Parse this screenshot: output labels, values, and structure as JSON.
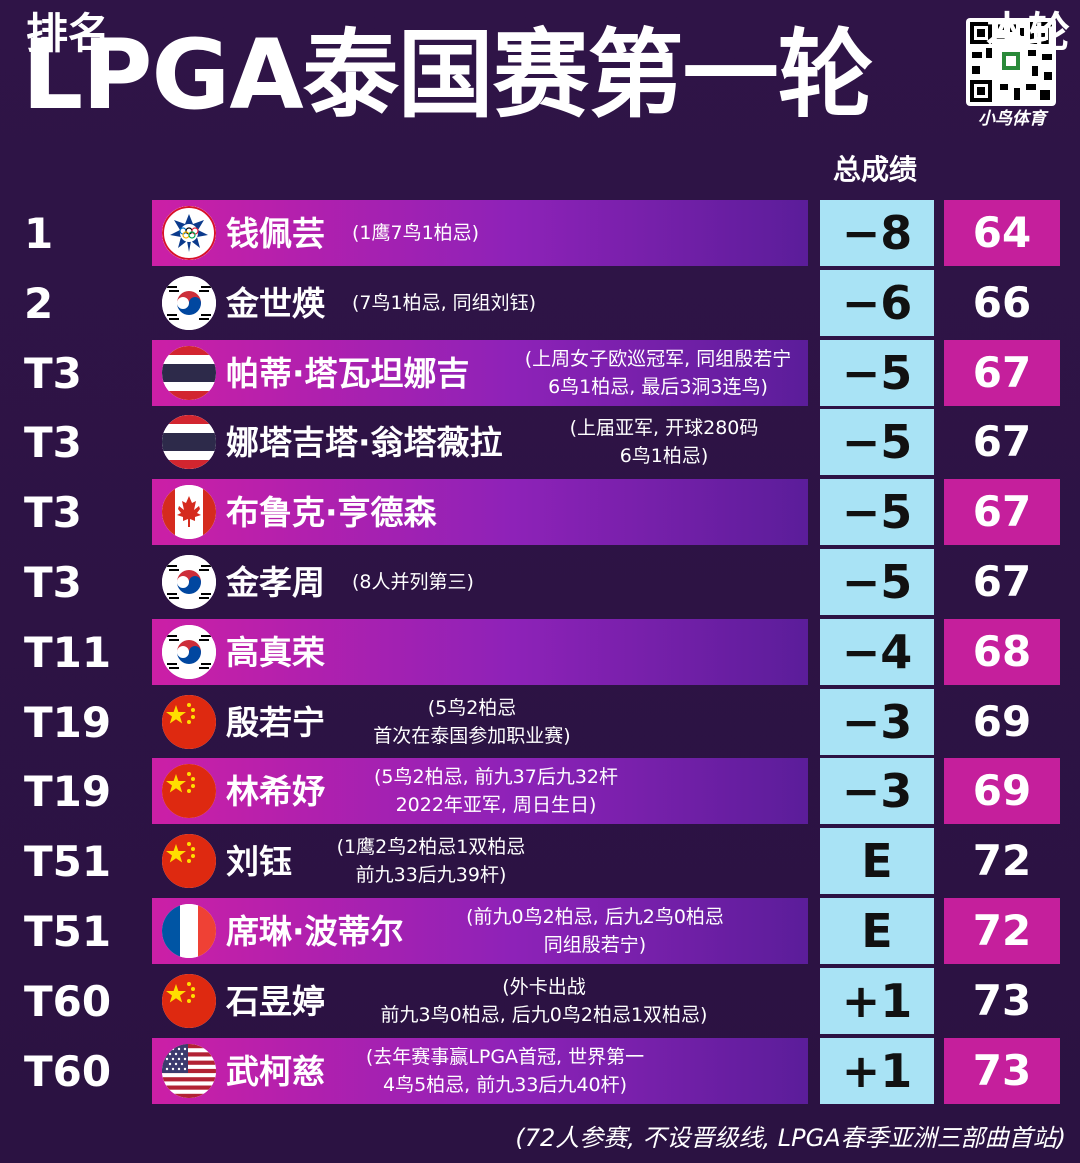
{
  "title": "LPGA泰国赛第一轮",
  "brand": "小鸟体育",
  "headers": {
    "rank": "排名",
    "total": "总成绩",
    "round": "本轮"
  },
  "rows": [
    {
      "rank": "1",
      "flag": "chinese-taipei-olympic",
      "name": "钱佩芸",
      "note1": "(1鹰7鸟1柏忌)",
      "note2": "",
      "total": "−8",
      "round": "64",
      "highlight": true
    },
    {
      "rank": "2",
      "flag": "korea",
      "name": "金世煐",
      "note1": "(7鸟1柏忌, 同组刘钰)",
      "note2": "",
      "total": "−6",
      "round": "66",
      "highlight": false
    },
    {
      "rank": "T3",
      "flag": "thailand",
      "name": "帕蒂·塔瓦坦娜吉",
      "note1": "(上周女子欧巡冠军, 同组殷若宁",
      "note2": "6鸟1柏忌, 最后3洞3连鸟)",
      "total": "−5",
      "round": "67",
      "highlight": true
    },
    {
      "rank": "T3",
      "flag": "thailand",
      "name": "娜塔吉塔·翁塔薇拉",
      "note1": "(上届亚军, 开球280码",
      "note2": "6鸟1柏忌)",
      "total": "−5",
      "round": "67",
      "highlight": false
    },
    {
      "rank": "T3",
      "flag": "canada",
      "name": "布鲁克·亨德森",
      "note1": "",
      "note2": "",
      "total": "−5",
      "round": "67",
      "highlight": true
    },
    {
      "rank": "T3",
      "flag": "korea",
      "name": "金孝周",
      "note1": "(8人并列第三)",
      "note2": "",
      "total": "−5",
      "round": "67",
      "highlight": false
    },
    {
      "rank": "T11",
      "flag": "korea",
      "name": "高真荣",
      "note1": "",
      "note2": "",
      "total": "−4",
      "round": "68",
      "highlight": true
    },
    {
      "rank": "T19",
      "flag": "china",
      "name": "殷若宁",
      "note1": "(5鸟2柏忌",
      "note2": "首次在泰国参加职业赛)",
      "total": "−3",
      "round": "69",
      "highlight": false
    },
    {
      "rank": "T19",
      "flag": "china",
      "name": "林希妤",
      "note1": "(5鸟2柏忌, 前九37后九32杆",
      "note2": "2022年亚军, 周日生日)",
      "total": "−3",
      "round": "69",
      "highlight": true
    },
    {
      "rank": "T51",
      "flag": "china",
      "name": "刘钰",
      "note1": "(1鹰2鸟2柏忌1双柏忌",
      "note2": "前九33后九39杆)",
      "total": "E",
      "round": "72",
      "highlight": false
    },
    {
      "rank": "T51",
      "flag": "france",
      "name": "席琳·波蒂尔",
      "note1": "(前九0鸟2柏忌, 后九2鸟0柏忌",
      "note2": "同组殷若宁)",
      "total": "E",
      "round": "72",
      "highlight": true
    },
    {
      "rank": "T60",
      "flag": "china",
      "name": "石昱婷",
      "note1": "(外卡出战",
      "note2": "前九3鸟0柏忌, 后九0鸟2柏忌1双柏忌)",
      "total": "+1",
      "round": "73",
      "highlight": false
    },
    {
      "rank": "T60",
      "flag": "usa",
      "name": "武柯慈",
      "note1": "(去年赛事赢LPGA首冠, 世界第一",
      "note2": "4鸟5柏忌, 前九33后九40杆)",
      "total": "+1",
      "round": "73",
      "highlight": true
    }
  ],
  "footer": "(72人参赛, 不设晋级线, LPGA春季亚洲三部曲首站)"
}
